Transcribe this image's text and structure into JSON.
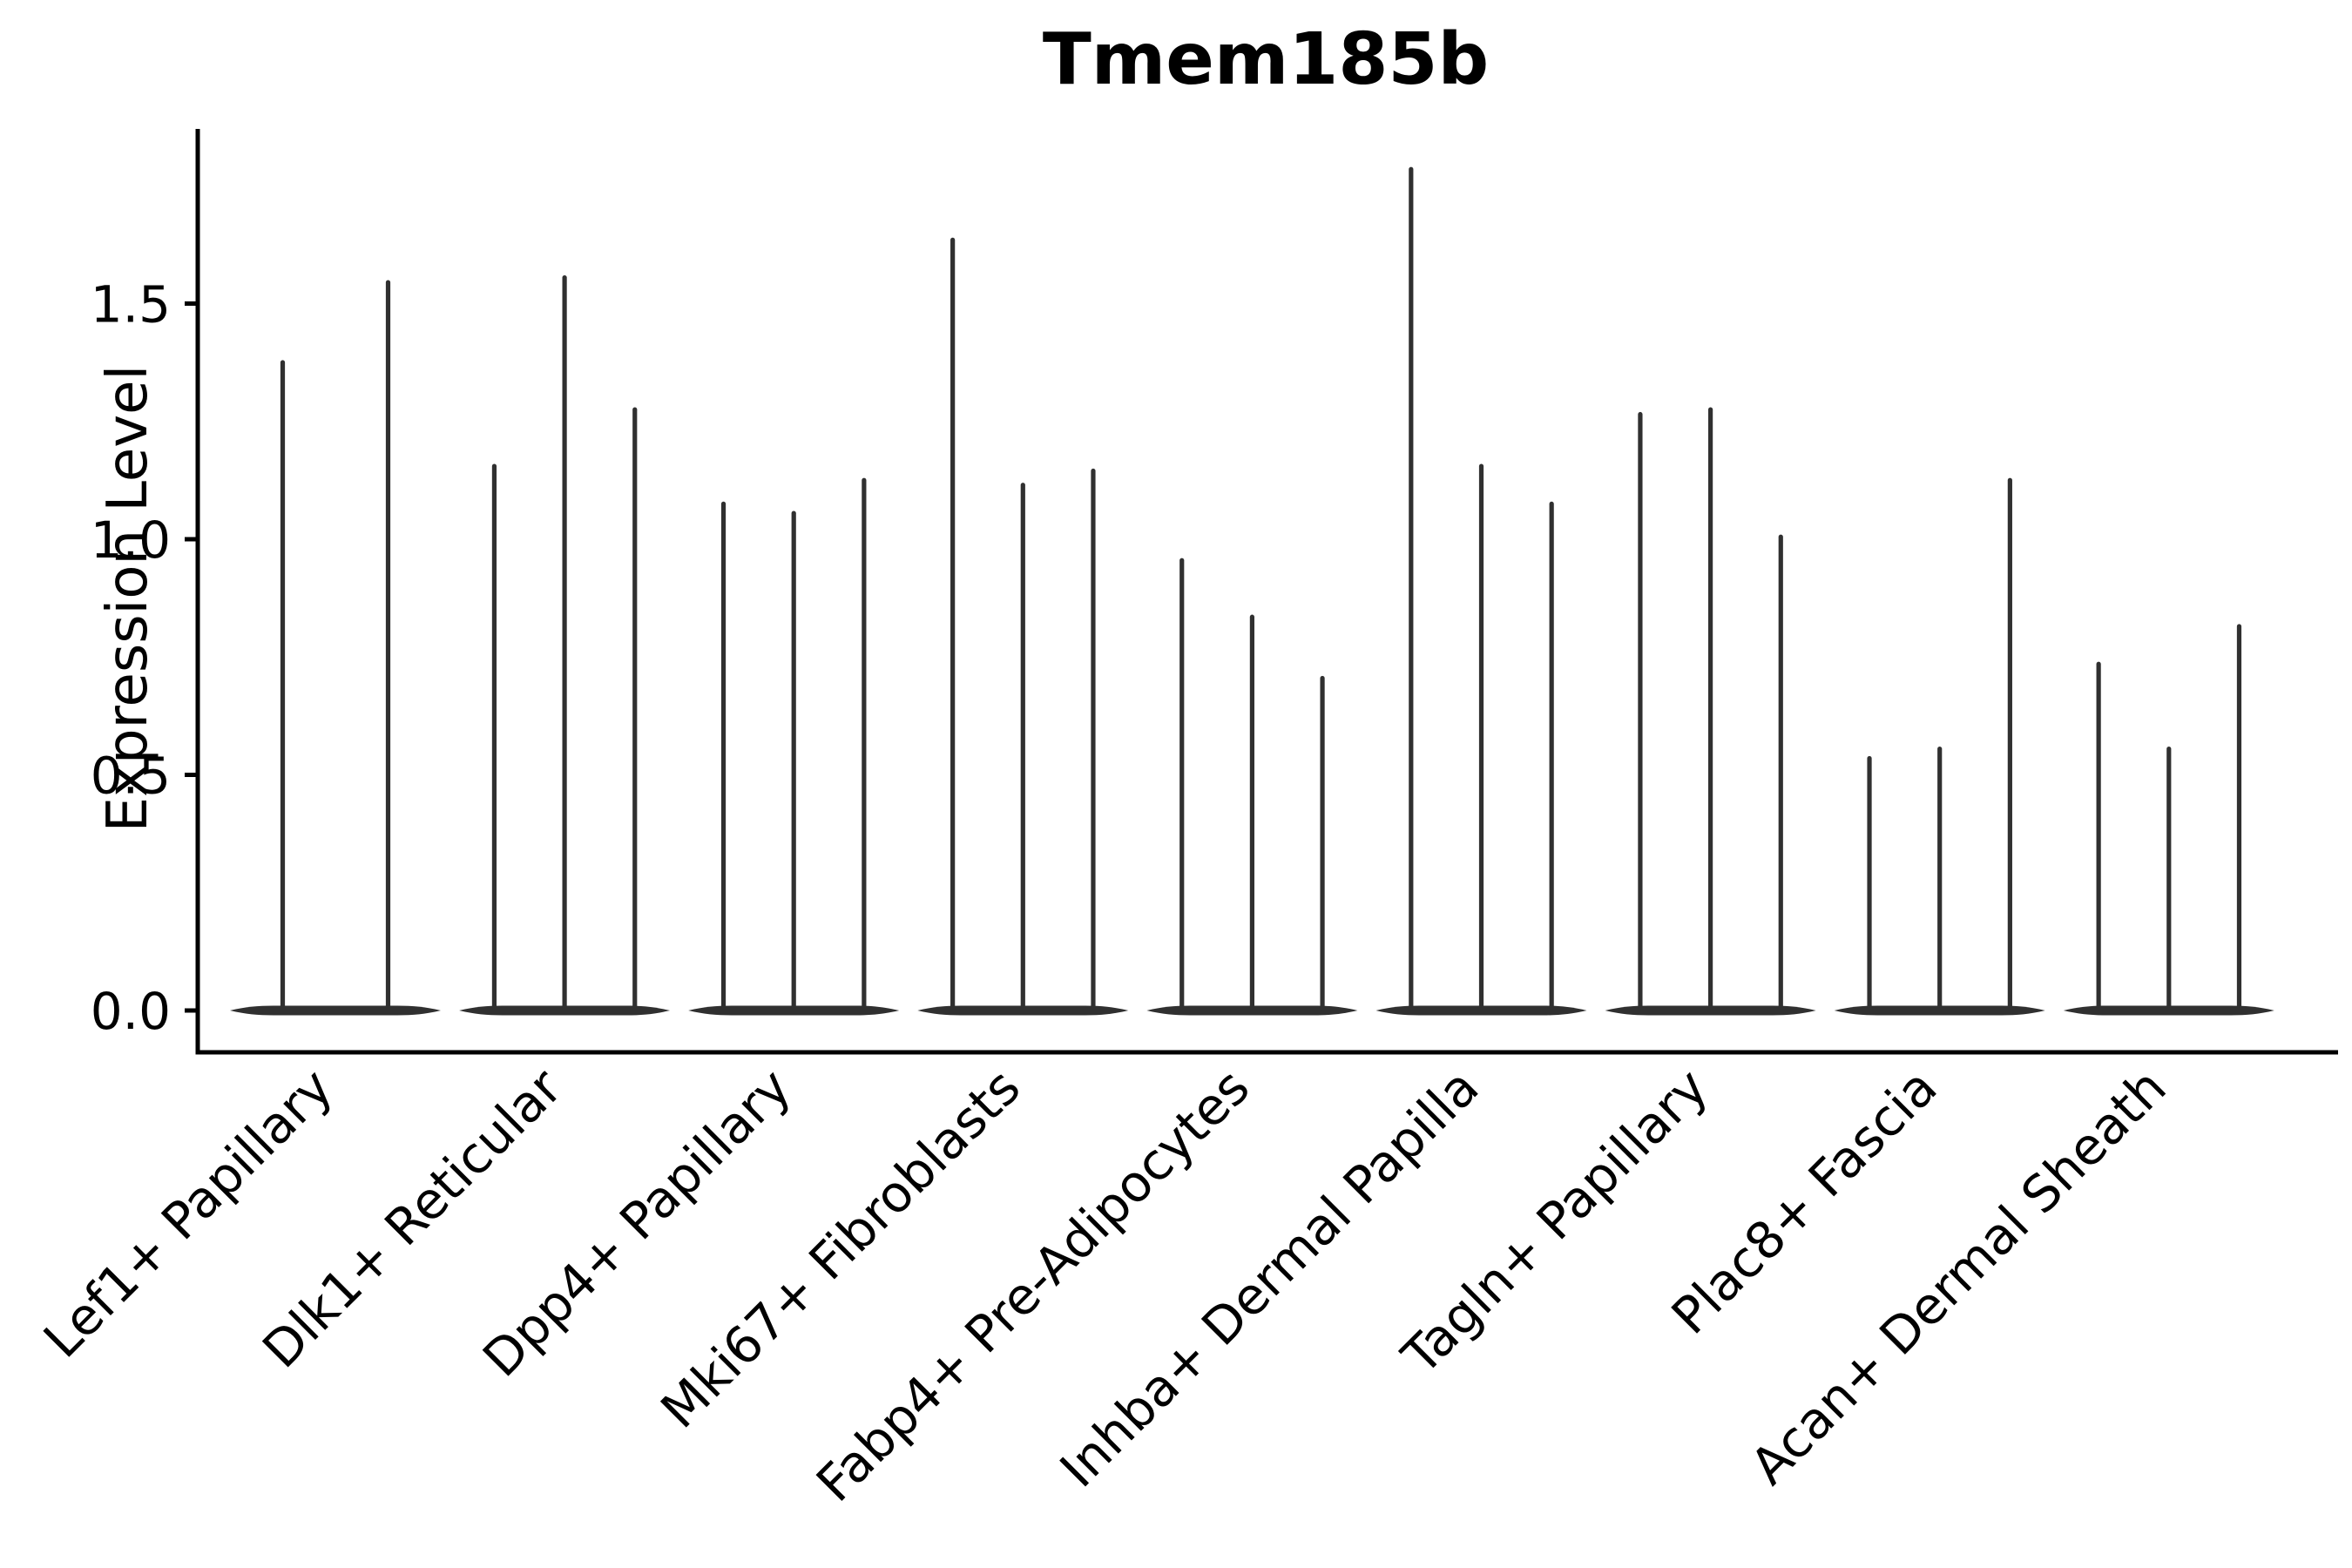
{
  "chart_data": {
    "type": "violin",
    "title": "Tmem185b",
    "title_weight": "bold",
    "xlabel": "",
    "ylabel": "Expression Level",
    "ylim": [
      -0.09,
      1.87
    ],
    "yticks": [
      0.0,
      0.5,
      1.0,
      1.5
    ],
    "grid": false,
    "legend": "none",
    "violin_color": "#303030",
    "axis_color": "#000000",
    "baseline_value": 0.0,
    "categories": [
      "Lef1+ Papillary",
      "Dlk1+ Reticular",
      "Dpp4+ Papillary",
      "Mki67+ Fibroblasts",
      "Fabp4+ Pre-Adipocytes",
      "Inhba+ Dermal Papilla",
      "Tagln+ Papillary",
      "Plac8+ Fascia",
      "Acan+ Dermal Sheath"
    ],
    "groups": [
      {
        "label": "Lef1+ Papillary",
        "violin_maxima": [
          1.38,
          1.55
        ]
      },
      {
        "label": "Dlk1+ Reticular",
        "violin_maxima": [
          1.16,
          1.56,
          1.28
        ]
      },
      {
        "label": "Dpp4+ Papillary",
        "violin_maxima": [
          1.08,
          1.06,
          1.13
        ]
      },
      {
        "label": "Mki67+ Fibroblasts",
        "violin_maxima": [
          1.64,
          1.12,
          1.15
        ]
      },
      {
        "label": "Fabp4+ Pre-Adipocytes",
        "violin_maxima": [
          0.96,
          0.84,
          0.71
        ]
      },
      {
        "label": "Inhba+ Dermal Papilla",
        "violin_maxima": [
          1.79,
          1.16,
          1.08
        ]
      },
      {
        "label": "Tagln+ Papillary",
        "violin_maxima": [
          1.27,
          1.28,
          1.01
        ]
      },
      {
        "label": "Plac8+ Fascia",
        "violin_maxima": [
          0.54,
          0.56,
          1.13
        ]
      },
      {
        "label": "Acan+ Dermal Sheath",
        "violin_maxima": [
          0.74,
          0.56,
          0.82
        ]
      }
    ]
  }
}
